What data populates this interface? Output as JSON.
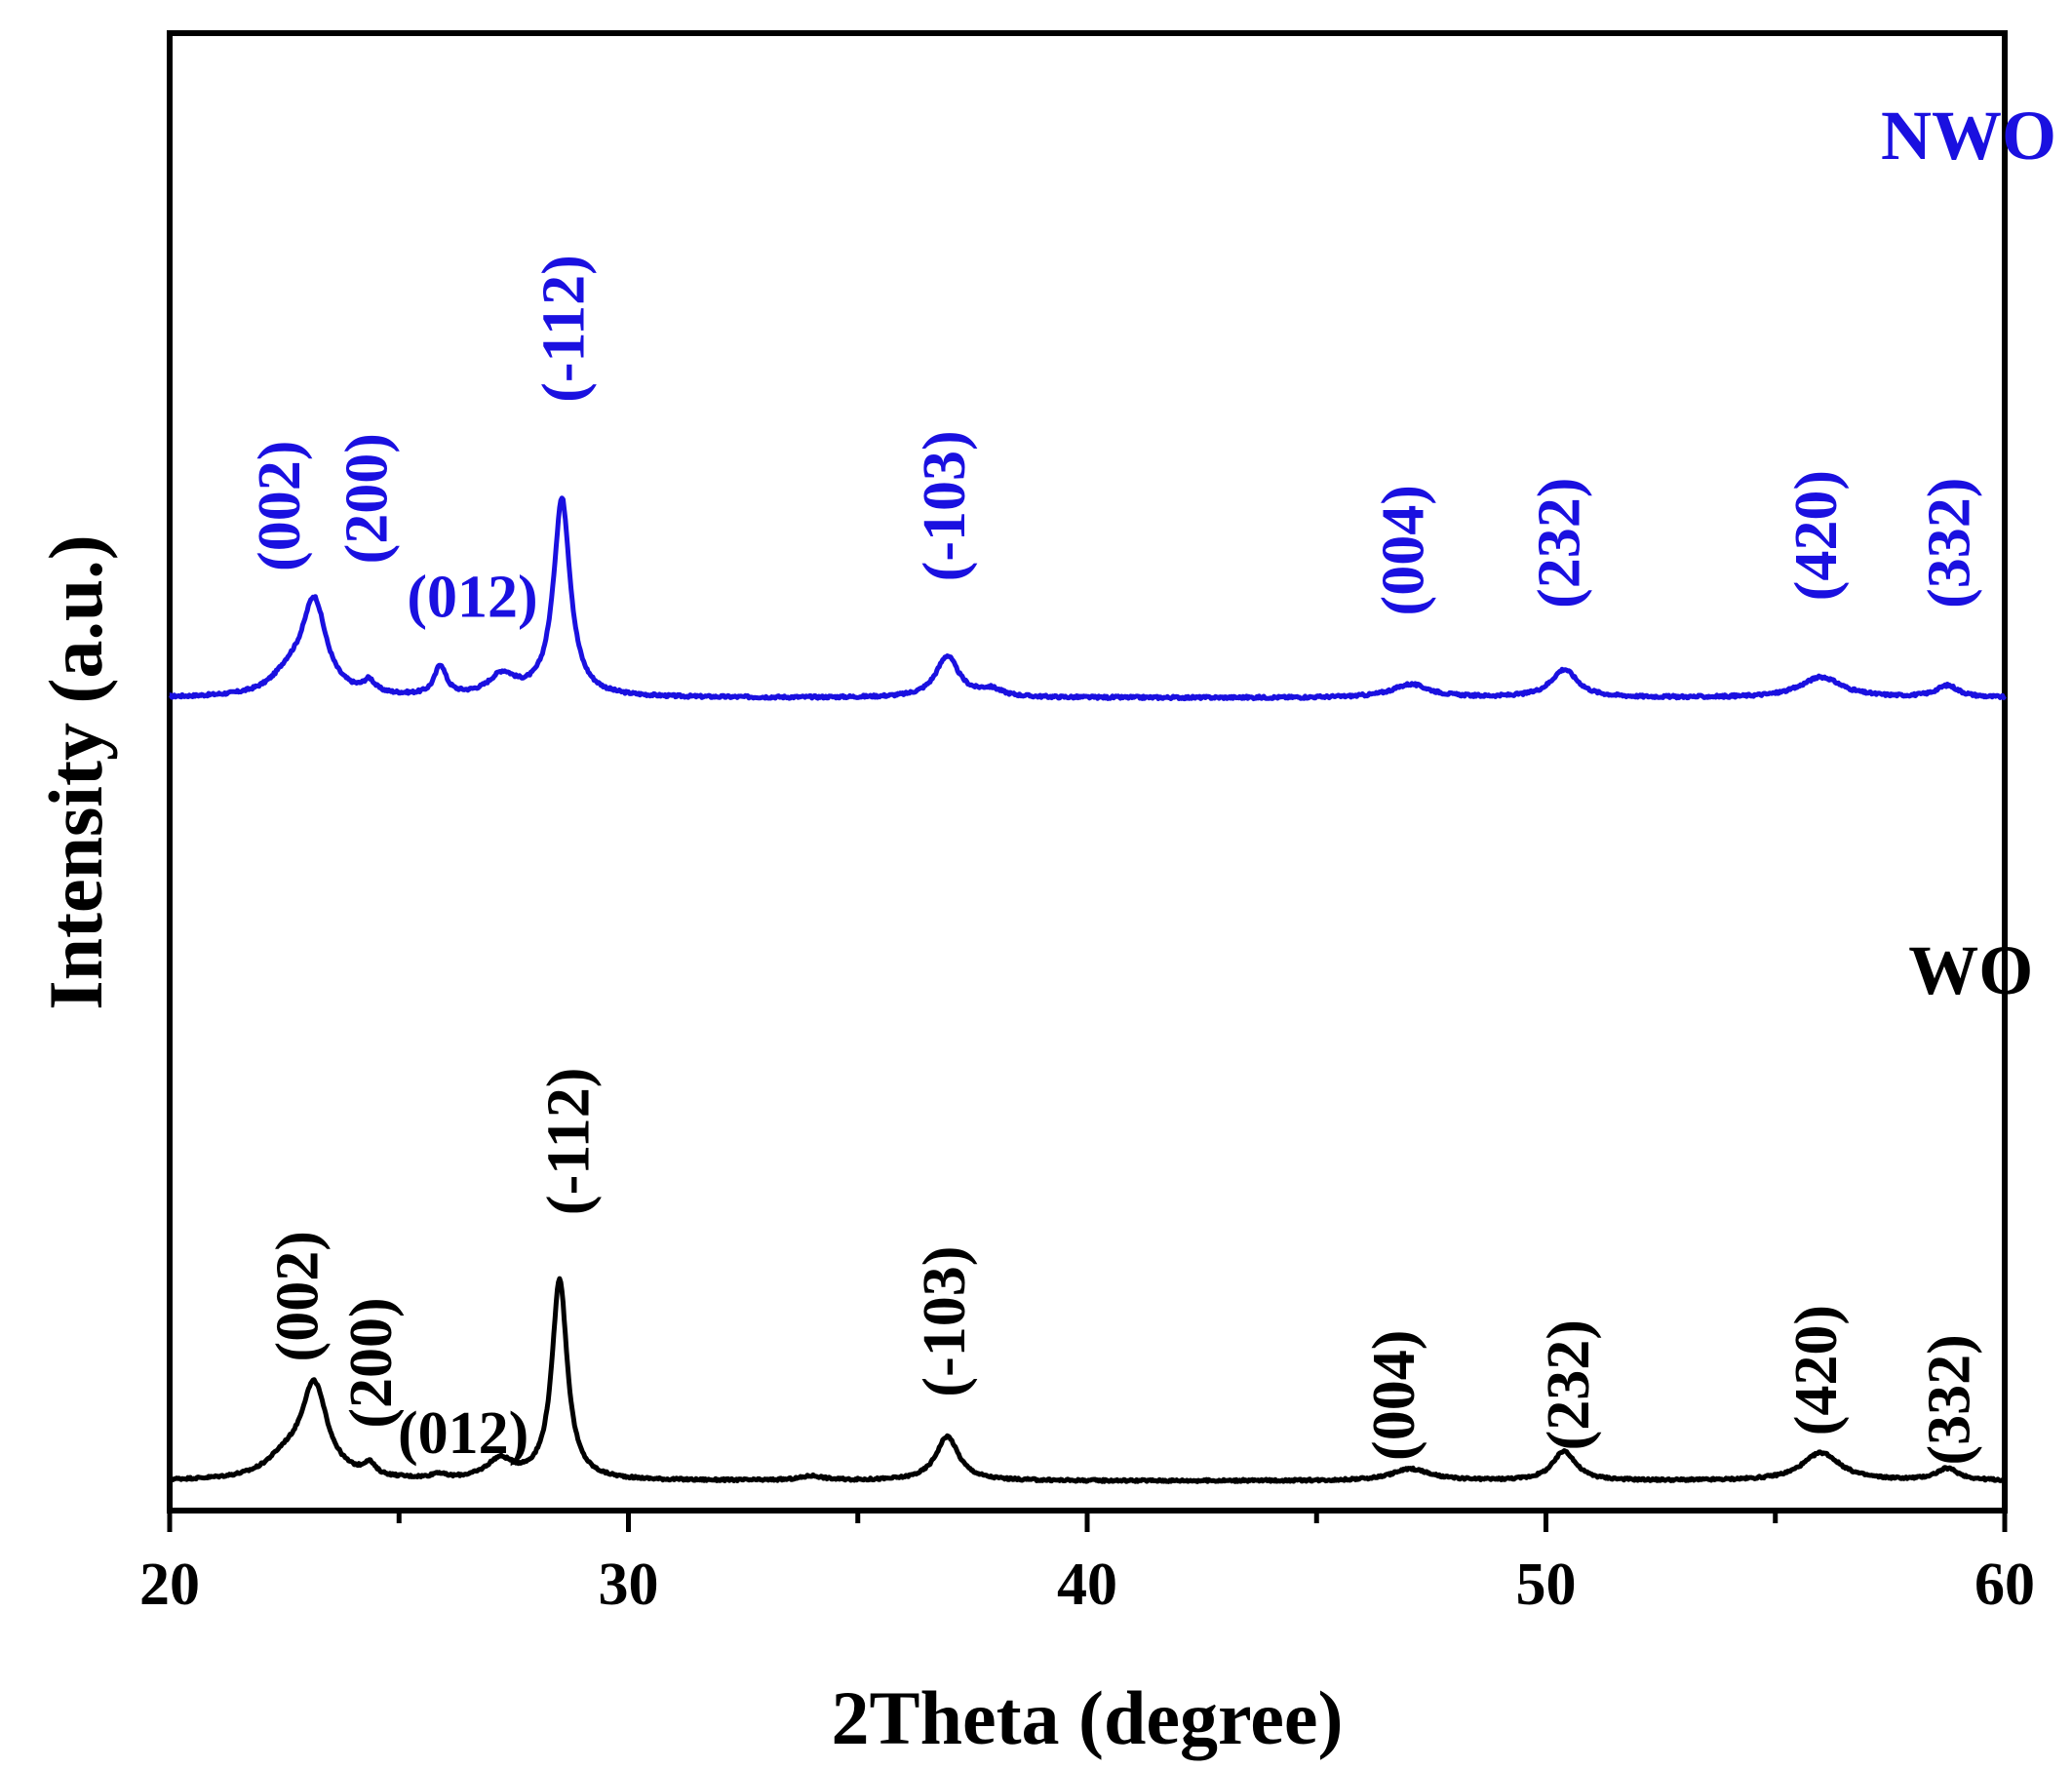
{
  "chart_data": {
    "type": "line",
    "title": "",
    "xlabel": "2Theta (degree)",
    "ylabel": "Intensity (a.u.)",
    "xlim": [
      20,
      60
    ],
    "ylim": [
      0,
      100
    ],
    "xticks": [
      "20",
      "30",
      "40",
      "50",
      "60"
    ],
    "yticks": [],
    "grid": false,
    "legend": "none",
    "series": [
      {
        "name": "NWO",
        "color": "#1a10e0",
        "baseline": 55.0,
        "noise": 0.18,
        "peaks": [
          {
            "x": 23.15,
            "h": 6.3,
            "w": 0.32
          },
          {
            "x": 22.6,
            "h": 1.3,
            "w": 0.45
          },
          {
            "x": 24.35,
            "h": 0.8,
            "w": 0.15
          },
          {
            "x": 25.9,
            "h": 2.0,
            "w": 0.15
          },
          {
            "x": 27.25,
            "h": 1.4,
            "w": 0.35
          },
          {
            "x": 28.55,
            "h": 13.4,
            "w": 0.22
          },
          {
            "x": 36.95,
            "h": 2.8,
            "w": 0.3
          },
          {
            "x": 37.9,
            "h": 0.5,
            "w": 0.3
          },
          {
            "x": 47.05,
            "h": 0.9,
            "w": 0.5
          },
          {
            "x": 50.4,
            "h": 1.9,
            "w": 0.35
          },
          {
            "x": 56.0,
            "h": 1.4,
            "w": 0.55
          },
          {
            "x": 58.75,
            "h": 0.8,
            "w": 0.3
          }
        ],
        "annotations": [
          {
            "label": "(002)",
            "x": 22.4,
            "y": 68.0
          },
          {
            "label": "(200)",
            "x": 24.3,
            "y": 68.5
          },
          {
            "label": "(012)",
            "x": 26.6,
            "y": 61.8
          },
          {
            "label": "(-112)",
            "x": 28.6,
            "y": 80.0
          },
          {
            "label": "(-103)",
            "x": 36.9,
            "y": 68.0
          },
          {
            "label": "(004)",
            "x": 46.9,
            "y": 65.0
          },
          {
            "label": "(232)",
            "x": 50.3,
            "y": 65.5
          },
          {
            "label": "(420)",
            "x": 55.9,
            "y": 66.0
          },
          {
            "label": "(332)",
            "x": 58.8,
            "y": 65.5
          }
        ]
      },
      {
        "name": "WO",
        "color": "#000000",
        "baseline": 2.0,
        "noise": 0.15,
        "peaks": [
          {
            "x": 23.15,
            "h": 6.3,
            "w": 0.35
          },
          {
            "x": 22.5,
            "h": 1.2,
            "w": 0.5
          },
          {
            "x": 24.35,
            "h": 0.8,
            "w": 0.15
          },
          {
            "x": 25.85,
            "h": 0.3,
            "w": 0.15
          },
          {
            "x": 27.2,
            "h": 1.3,
            "w": 0.35
          },
          {
            "x": 28.5,
            "h": 13.6,
            "w": 0.2
          },
          {
            "x": 36.95,
            "h": 3.0,
            "w": 0.3
          },
          {
            "x": 34.0,
            "h": 0.3,
            "w": 0.3
          },
          {
            "x": 47.05,
            "h": 0.8,
            "w": 0.5
          },
          {
            "x": 50.4,
            "h": 2.0,
            "w": 0.3
          },
          {
            "x": 56.0,
            "h": 1.9,
            "w": 0.5
          },
          {
            "x": 58.75,
            "h": 0.8,
            "w": 0.3
          }
        ],
        "annotations": [
          {
            "label": "(002)",
            "x": 22.8,
            "y": 14.5
          },
          {
            "label": "(200)",
            "x": 24.4,
            "y": 10.0
          },
          {
            "label": "(012)",
            "x": 26.4,
            "y": 5.2
          },
          {
            "label": "(-112)",
            "x": 28.7,
            "y": 25.0
          },
          {
            "label": "(-103)",
            "x": 36.9,
            "y": 12.8
          },
          {
            "label": "(004)",
            "x": 46.7,
            "y": 7.8
          },
          {
            "label": "(232)",
            "x": 50.5,
            "y": 8.5
          },
          {
            "label": "(420)",
            "x": 55.9,
            "y": 9.5
          },
          {
            "label": "(332)",
            "x": 58.8,
            "y": 7.5
          }
        ]
      }
    ],
    "series_labels": [
      {
        "text": "NWO",
        "color": "#1a10e0",
        "x": 57.3,
        "y": 91.5
      },
      {
        "text": "WO",
        "color": "#000000",
        "x": 57.9,
        "y": 35.0
      }
    ]
  }
}
